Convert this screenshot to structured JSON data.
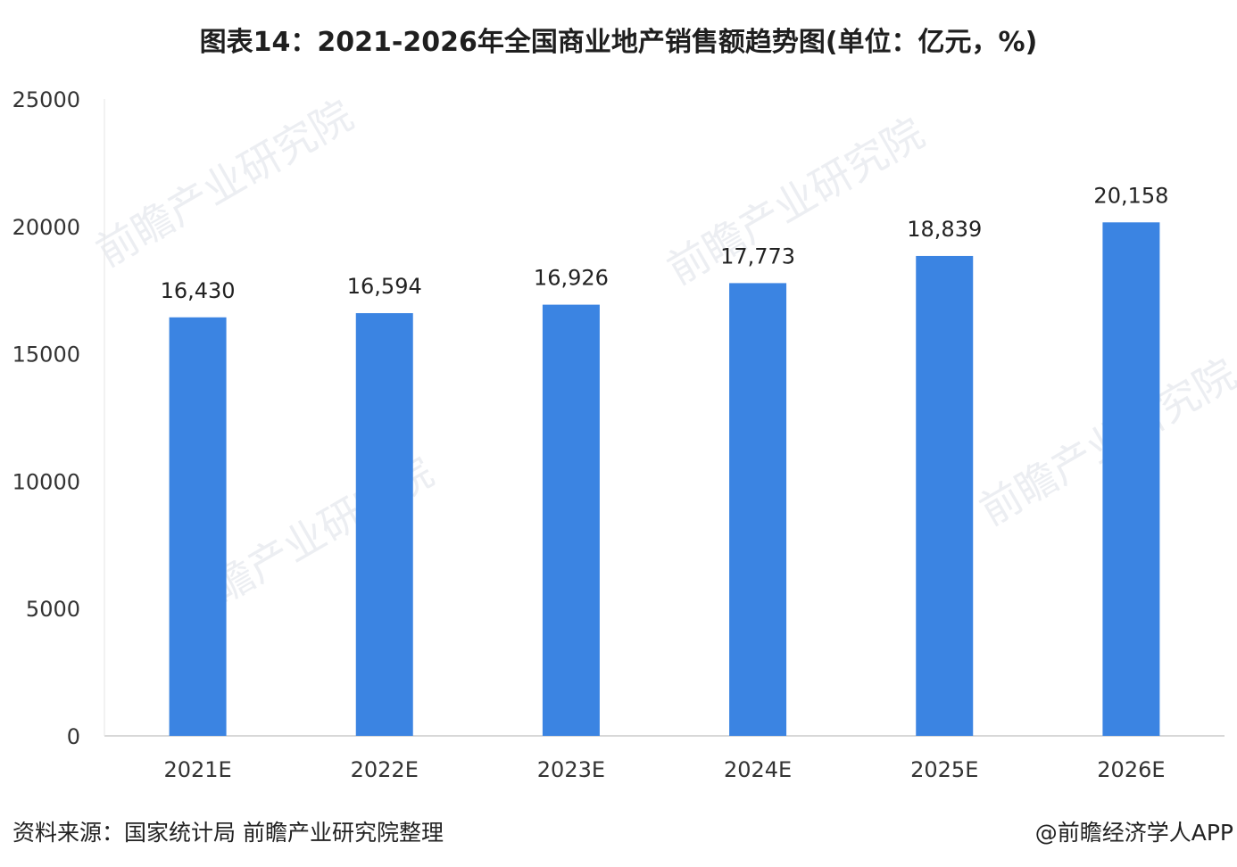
{
  "chart_data": {
    "type": "bar",
    "title": "图表14：2021-2026年全国商业地产销售额趋势图(单位：亿元，%)",
    "categories": [
      "2021E",
      "2022E",
      "2023E",
      "2024E",
      "2025E",
      "2026E"
    ],
    "values": [
      16430,
      16594,
      16926,
      17773,
      18839,
      20158
    ],
    "data_labels": [
      "16,430",
      "16,594",
      "16,926",
      "17,773",
      "18,839",
      "20,158"
    ],
    "yticks": [
      0,
      5000,
      10000,
      15000,
      20000,
      25000
    ],
    "ylim": [
      0,
      25000
    ],
    "xlabel": "",
    "ylabel": "",
    "grid": false,
    "legend": "none",
    "bar_color": "#3b84e2"
  },
  "footer": {
    "source": "资料来源：国家统计局 前瞻产业研究院整理",
    "credit": "@前瞻经济学人APP"
  },
  "watermark": {
    "text": "前瞻产业研究院"
  }
}
